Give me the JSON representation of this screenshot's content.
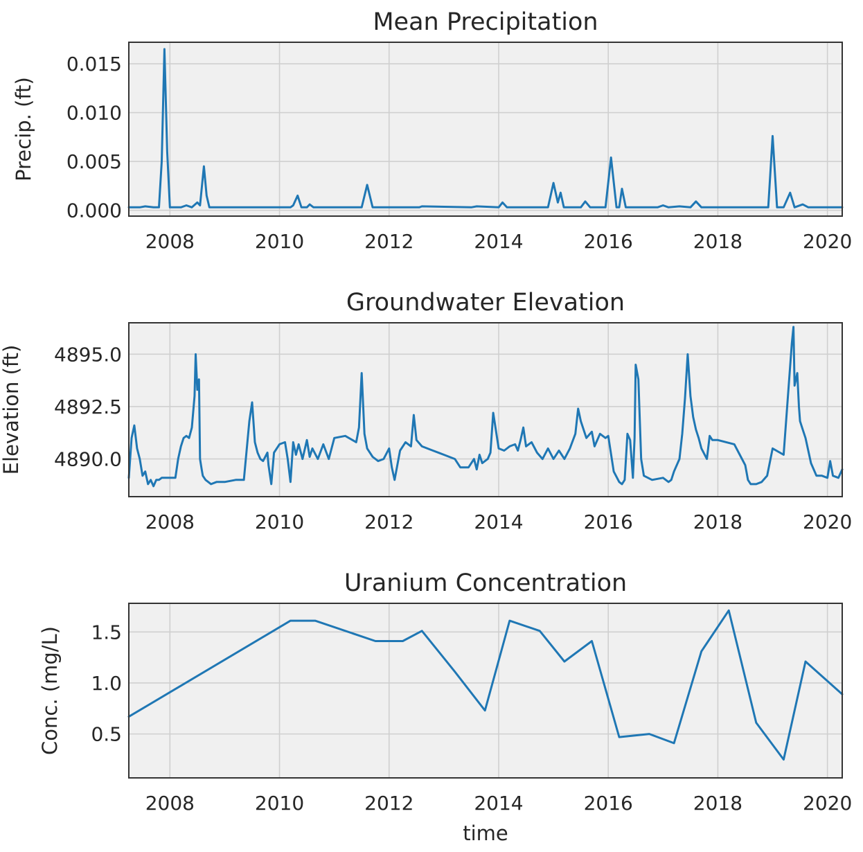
{
  "chart_data": [
    {
      "type": "line",
      "title": "Mean Precipitation",
      "ylabel": "Precip. (ft)",
      "xlabel": "",
      "xlim": [
        2007.25,
        2020.27
      ],
      "ylim": [
        -0.0006,
        0.0172
      ],
      "xticks": [
        2008,
        2010,
        2012,
        2014,
        2016,
        2018,
        2020
      ],
      "yticks": [
        0.0,
        0.005,
        0.01,
        0.015
      ],
      "ytick_labels": [
        "0.000",
        "0.005",
        "0.010",
        "0.015"
      ],
      "grid": true,
      "color": "#1f77b4",
      "series": [
        {
          "x": [
            2007.25,
            2007.45,
            2007.55,
            2007.7,
            2007.8,
            2007.85,
            2007.9,
            2007.95,
            2008.0,
            2008.2,
            2008.3,
            2008.4,
            2008.5,
            2008.55,
            2008.62,
            2008.67,
            2008.72,
            2008.8,
            2009.5,
            2010.2,
            2010.25,
            2010.33,
            2010.4,
            2010.5,
            2010.55,
            2010.62,
            2011.0,
            2011.5,
            2011.6,
            2011.7,
            2012.0,
            2012.55,
            2012.6,
            2013.5,
            2013.6,
            2014.0,
            2014.07,
            2014.15,
            2014.3,
            2014.7,
            2014.9,
            2015.0,
            2015.08,
            2015.13,
            2015.19,
            2015.25,
            2015.3,
            2015.5,
            2015.58,
            2015.67,
            2015.75,
            2015.95,
            2016.05,
            2016.15,
            2016.2,
            2016.25,
            2016.32,
            2016.38,
            2016.45,
            2016.9,
            2017.0,
            2017.1,
            2017.3,
            2017.5,
            2017.6,
            2017.7,
            2018.6,
            2018.92,
            2019.0,
            2019.08,
            2019.2,
            2019.32,
            2019.4,
            2019.55,
            2019.65,
            2019.75,
            2020.27
          ],
          "y": [
            0.0003,
            0.0003,
            0.0004,
            0.0003,
            0.0003,
            0.005,
            0.0165,
            0.006,
            0.0003,
            0.0003,
            0.0005,
            0.0003,
            0.0008,
            0.0005,
            0.0045,
            0.0015,
            0.0003,
            0.0003,
            0.0003,
            0.0003,
            0.0005,
            0.0015,
            0.0003,
            0.0003,
            0.0006,
            0.0003,
            0.0003,
            0.0003,
            0.0026,
            0.0003,
            0.0003,
            0.0003,
            0.0004,
            0.0003,
            0.0004,
            0.0003,
            0.0008,
            0.0003,
            0.0003,
            0.0003,
            0.0003,
            0.0028,
            0.0008,
            0.0018,
            0.0003,
            0.0003,
            0.0003,
            0.0003,
            0.0009,
            0.0003,
            0.0003,
            0.0003,
            0.0054,
            0.0003,
            0.0003,
            0.0022,
            0.0003,
            0.0003,
            0.0003,
            0.0003,
            0.0005,
            0.0003,
            0.0004,
            0.0003,
            0.0009,
            0.0003,
            0.0003,
            0.0003,
            0.0076,
            0.0003,
            0.0003,
            0.0018,
            0.0003,
            0.0006,
            0.0003,
            0.0003,
            0.0003
          ]
        }
      ]
    },
    {
      "type": "line",
      "title": "Groundwater Elevation",
      "ylabel": "Elevation (ft)",
      "xlabel": "",
      "xlim": [
        2007.25,
        2020.27
      ],
      "ylim": [
        4888.2,
        4896.5
      ],
      "xticks": [
        2008,
        2010,
        2012,
        2014,
        2016,
        2018,
        2020
      ],
      "yticks": [
        4890.0,
        4892.5,
        4895.0
      ],
      "ytick_labels": [
        "4890.0",
        "4892.5",
        "4895.0"
      ],
      "grid": true,
      "color": "#1f77b4",
      "series": [
        {
          "x": [
            2007.25,
            2007.3,
            2007.35,
            2007.4,
            2007.45,
            2007.5,
            2007.55,
            2007.6,
            2007.65,
            2007.7,
            2007.75,
            2007.8,
            2007.85,
            2007.95,
            2008.1,
            2008.15,
            2008.2,
            2008.25,
            2008.3,
            2008.35,
            2008.4,
            2008.45,
            2008.47,
            2008.5,
            2008.53,
            2008.55,
            2008.58,
            2008.6,
            2008.65,
            2008.7,
            2008.75,
            2008.85,
            2009.0,
            2009.2,
            2009.35,
            2009.45,
            2009.5,
            2009.55,
            2009.6,
            2009.65,
            2009.7,
            2009.78,
            2009.8,
            2009.85,
            2009.9,
            2010.0,
            2010.1,
            2010.15,
            2010.2,
            2010.25,
            2010.3,
            2010.35,
            2010.42,
            2010.5,
            2010.55,
            2010.6,
            2010.7,
            2010.8,
            2010.9,
            2011.0,
            2011.2,
            2011.4,
            2011.45,
            2011.5,
            2011.55,
            2011.6,
            2011.7,
            2011.8,
            2011.9,
            2012.0,
            2012.05,
            2012.1,
            2012.2,
            2012.3,
            2012.4,
            2012.45,
            2012.5,
            2012.6,
            2012.8,
            2013.0,
            2013.2,
            2013.3,
            2013.45,
            2013.55,
            2013.6,
            2013.65,
            2013.7,
            2013.8,
            2013.85,
            2013.9,
            2014.0,
            2014.1,
            2014.2,
            2014.3,
            2014.35,
            2014.4,
            2014.45,
            2014.5,
            2014.6,
            2014.7,
            2014.8,
            2014.9,
            2015.0,
            2015.1,
            2015.2,
            2015.3,
            2015.4,
            2015.45,
            2015.5,
            2015.6,
            2015.7,
            2015.75,
            2015.85,
            2015.95,
            2016.0,
            2016.1,
            2016.2,
            2016.25,
            2016.3,
            2016.35,
            2016.4,
            2016.45,
            2016.48,
            2016.5,
            2016.55,
            2016.6,
            2016.65,
            2016.8,
            2017.0,
            2017.1,
            2017.15,
            2017.2,
            2017.3,
            2017.35,
            2017.4,
            2017.45,
            2017.5,
            2017.55,
            2017.6,
            2017.65,
            2017.7,
            2017.8,
            2017.85,
            2017.9,
            2018.0,
            2018.3,
            2018.4,
            2018.5,
            2018.55,
            2018.6,
            2018.7,
            2018.8,
            2018.9,
            2019.0,
            2019.2,
            2019.35,
            2019.38,
            2019.4,
            2019.45,
            2019.48,
            2019.5,
            2019.55,
            2019.6,
            2019.7,
            2019.8,
            2019.85,
            2019.9,
            2020.0,
            2020.05,
            2020.1,
            2020.2,
            2020.27
          ],
          "y": [
            4889.1,
            4891.0,
            4891.6,
            4890.5,
            4890.0,
            4889.2,
            4889.4,
            4888.8,
            4889.0,
            4888.7,
            4889.0,
            4889.0,
            4889.1,
            4889.1,
            4889.1,
            4890.0,
            4890.6,
            4891.0,
            4891.1,
            4891.0,
            4891.5,
            4893.0,
            4895.0,
            4893.3,
            4893.8,
            4890.0,
            4889.5,
            4889.2,
            4889.0,
            4888.9,
            4888.8,
            4888.9,
            4888.9,
            4889.0,
            4889.0,
            4891.8,
            4892.7,
            4890.8,
            4890.3,
            4890.0,
            4889.9,
            4890.3,
            4889.7,
            4888.8,
            4890.3,
            4890.7,
            4890.8,
            4890.0,
            4888.9,
            4890.8,
            4890.2,
            4890.7,
            4890.0,
            4890.9,
            4890.1,
            4890.5,
            4890.0,
            4890.7,
            4890.0,
            4891.0,
            4891.1,
            4890.8,
            4891.5,
            4894.1,
            4891.2,
            4890.5,
            4890.1,
            4889.9,
            4890.0,
            4890.5,
            4889.6,
            4889.0,
            4890.4,
            4890.8,
            4890.6,
            4892.1,
            4890.9,
            4890.6,
            4890.4,
            4890.2,
            4890.0,
            4889.6,
            4889.6,
            4890.0,
            4889.5,
            4890.2,
            4889.8,
            4890.0,
            4890.3,
            4892.2,
            4890.5,
            4890.4,
            4890.6,
            4890.7,
            4890.4,
            4890.9,
            4891.5,
            4890.6,
            4890.8,
            4890.3,
            4890.0,
            4890.5,
            4890.0,
            4890.4,
            4890.0,
            4890.5,
            4891.2,
            4892.4,
            4891.8,
            4891.0,
            4891.3,
            4890.6,
            4891.2,
            4891.0,
            4891.1,
            4889.4,
            4888.9,
            4888.8,
            4889.0,
            4891.2,
            4890.9,
            4889.1,
            4891.0,
            4894.5,
            4893.8,
            4890.0,
            4889.2,
            4889.0,
            4889.1,
            4888.9,
            4889.0,
            4889.4,
            4890.0,
            4891.2,
            4892.9,
            4895.0,
            4893.0,
            4892.0,
            4891.4,
            4891.0,
            4890.5,
            4890.0,
            4891.1,
            4890.9,
            4890.9,
            4890.7,
            4890.2,
            4889.7,
            4889.0,
            4888.8,
            4888.8,
            4888.9,
            4889.2,
            4890.5,
            4890.2,
            4895.5,
            4896.3,
            4893.5,
            4894.1,
            4892.5,
            4891.8,
            4891.4,
            4891.0,
            4889.8,
            4889.2,
            4889.2,
            4889.2,
            4889.1,
            4889.9,
            4889.2,
            4889.1,
            4889.5
          ]
        }
      ]
    },
    {
      "type": "line",
      "title": "Uranium Concentration",
      "ylabel": "Conc. (mg/L)",
      "xlabel": "time",
      "xlim": [
        2007.25,
        2020.27
      ],
      "ylim": [
        0.07,
        1.78
      ],
      "xticks": [
        2008,
        2010,
        2012,
        2014,
        2016,
        2018,
        2020
      ],
      "yticks": [
        0.5,
        1.0,
        1.5
      ],
      "ytick_labels": [
        "0.5",
        "1.0",
        "1.5"
      ],
      "grid": true,
      "color": "#1f77b4",
      "series": [
        {
          "x": [
            2007.25,
            2010.2,
            2010.65,
            2011.75,
            2012.25,
            2012.6,
            2013.2,
            2013.75,
            2014.2,
            2014.75,
            2015.2,
            2015.7,
            2016.2,
            2016.75,
            2017.2,
            2017.7,
            2018.2,
            2018.7,
            2019.2,
            2019.6,
            2020.27
          ],
          "y": [
            0.67,
            1.61,
            1.61,
            1.41,
            1.41,
            1.51,
            1.11,
            0.73,
            1.61,
            1.51,
            1.21,
            1.41,
            0.47,
            0.5,
            0.41,
            1.31,
            1.71,
            0.61,
            0.25,
            1.21,
            0.89
          ]
        }
      ]
    }
  ]
}
